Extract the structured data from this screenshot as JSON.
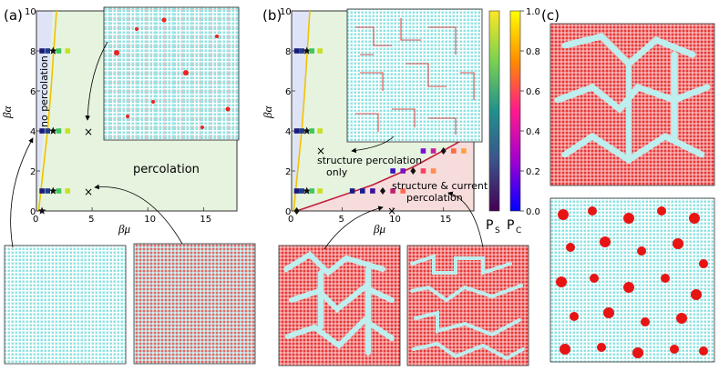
{
  "panel_labels": {
    "a": "(a)",
    "b": "(b)",
    "c": "(c)"
  },
  "panel_a": {
    "region_no": "no percolation",
    "region_yes": "percolation",
    "cross_marks": [
      "×",
      "×"
    ]
  },
  "panel_b": {
    "ann_structure": [
      "structure percolation",
      "only"
    ],
    "ann_current": [
      "structure & current",
      "percolation"
    ],
    "cross_marks": [
      "×",
      "×"
    ]
  },
  "colorbar": {
    "ticks": [
      "1.0",
      "0.8",
      "0.6",
      "0.4",
      "0.2",
      "0.0"
    ],
    "label_s": "P",
    "label_s_sub": "S",
    "label_c": "P",
    "label_c_sub": "C",
    "stops": [
      "#fde725",
      "#b4de2c",
      "#35b779",
      "#26828e",
      "#3e4989",
      "#440154"
    ],
    "stops_c": [
      "#ffff00",
      "#ff8c00",
      "#ff1493",
      "#b000d0",
      "#4b00c8",
      "#0000ff"
    ]
  },
  "colors": {
    "blue_region": "#dfe3f7",
    "green_region": "#e6f3df",
    "pink_region": "#f7dcdc",
    "boundary_yellow": "#f2c200",
    "boundary_red": "#c0203a",
    "water": "#a8eaea",
    "arrow_red": "#e62222"
  },
  "chart_data": [
    {
      "type": "scatter",
      "panel": "(a)",
      "xlabel": "βμ",
      "ylabel": "βα",
      "xlim": [
        0,
        18
      ],
      "ylim": [
        0,
        10
      ],
      "xticks": [
        "0",
        "5",
        "10",
        "15"
      ],
      "yticks": [
        "0",
        "2",
        "4",
        "6",
        "8",
        "10"
      ],
      "series": [
        {
          "name": "row βα=8",
          "points": [
            [
              0.5,
              8,
              "#1a1a7a"
            ],
            [
              1.0,
              8,
              "#1f3a8a"
            ],
            [
              1.5,
              8,
              "star"
            ],
            [
              2.0,
              8,
              "#3cc85a"
            ],
            [
              2.8,
              8,
              "#c8e020"
            ]
          ]
        },
        {
          "name": "row βα=4",
          "points": [
            [
              0.5,
              4,
              "#1a1a7a"
            ],
            [
              1.0,
              4,
              "#1f3a8a"
            ],
            [
              1.5,
              4,
              "star"
            ],
            [
              2.0,
              4,
              "#3cc85a"
            ],
            [
              2.8,
              4,
              "#c8e020"
            ]
          ]
        },
        {
          "name": "row βα=1",
          "points": [
            [
              0.5,
              1,
              "#1a1a7a"
            ],
            [
              1.0,
              1,
              "#1f3a8a"
            ],
            [
              1.5,
              1,
              "star"
            ],
            [
              2.0,
              1,
              "#3cc85a"
            ],
            [
              2.8,
              1,
              "#c8e020"
            ]
          ]
        },
        {
          "name": "origin",
          "points": [
            [
              0.5,
              0,
              "star"
            ]
          ]
        }
      ],
      "crosses": [
        [
          5,
          4
        ],
        [
          5,
          1
        ]
      ],
      "boundary": [
        [
          0.2,
          0
        ],
        [
          0.6,
          2
        ],
        [
          1.0,
          4
        ],
        [
          1.3,
          6
        ],
        [
          1.55,
          8
        ],
        [
          1.8,
          10
        ]
      ]
    },
    {
      "type": "scatter",
      "panel": "(b)",
      "xlabel": "βμ",
      "ylabel": "βα",
      "xlim": [
        0,
        18
      ],
      "ylim": [
        0,
        10
      ],
      "xticks": [
        "0",
        "5",
        "10",
        "15"
      ],
      "yticks": [
        "0",
        "2",
        "4",
        "6",
        "8",
        "10"
      ],
      "series": [
        {
          "name": "row βα=8",
          "points": [
            [
              0.5,
              8,
              "#1a1a7a"
            ],
            [
              1.0,
              8,
              "#1f3a8a"
            ],
            [
              1.5,
              8,
              "star"
            ],
            [
              2.0,
              8,
              "#3cc85a"
            ],
            [
              2.8,
              8,
              "#c8e020"
            ]
          ]
        },
        {
          "name": "row βα=4",
          "points": [
            [
              0.5,
              4,
              "#1a1a7a"
            ],
            [
              1.0,
              4,
              "#1f3a8a"
            ],
            [
              1.5,
              4,
              "star"
            ],
            [
              2.0,
              4,
              "#3cc85a"
            ],
            [
              2.8,
              4,
              "#c8e020"
            ]
          ]
        },
        {
          "name": "row βα=1",
          "points": [
            [
              0.5,
              1,
              "#1a1a7a"
            ],
            [
              1.0,
              1,
              "#1f3a8a"
            ],
            [
              1.5,
              1,
              "star"
            ],
            [
              2.0,
              1,
              "#3cc85a"
            ],
            [
              2.8,
              1,
              "#c8e020"
            ],
            [
              6,
              1,
              "#1a1a7a"
            ],
            [
              7,
              1,
              "#1a1a9a"
            ],
            [
              8,
              1,
              "#3a10a0"
            ],
            [
              9,
              1,
              "diamond"
            ],
            [
              10,
              1,
              "#c02070"
            ],
            [
              11,
              1,
              "#ff6a50"
            ]
          ]
        },
        {
          "name": "row βα=2",
          "points": [
            [
              10,
              2,
              "#3a10c0"
            ],
            [
              11,
              2,
              "#7a10c0"
            ],
            [
              12,
              2,
              "diamond"
            ],
            [
              13,
              2,
              "#ff4060"
            ],
            [
              14,
              2,
              "#ff8c50"
            ]
          ]
        },
        {
          "name": "row βα=3",
          "points": [
            [
              13,
              3,
              "#7a10d0"
            ],
            [
              14,
              3,
              "#c020a0"
            ],
            [
              15,
              3,
              "diamond"
            ],
            [
              16,
              3,
              "#ff6a40"
            ],
            [
              17,
              3,
              "#ffa040"
            ]
          ]
        },
        {
          "name": "origin",
          "points": [
            [
              0.5,
              0,
              "diamond"
            ]
          ]
        }
      ],
      "crosses": [
        [
          2.5,
          3
        ],
        [
          10,
          0
        ]
      ],
      "boundary_yellow": [
        [
          0.2,
          0
        ],
        [
          0.6,
          2
        ],
        [
          1.0,
          4
        ],
        [
          1.3,
          6
        ],
        [
          1.55,
          8
        ],
        [
          1.8,
          10
        ]
      ],
      "boundary_red": [
        [
          0.5,
          0
        ],
        [
          4,
          0.6
        ],
        [
          8,
          1.3
        ],
        [
          12,
          2.2
        ],
        [
          16,
          3.3
        ],
        [
          18,
          3.9
        ]
      ]
    }
  ]
}
